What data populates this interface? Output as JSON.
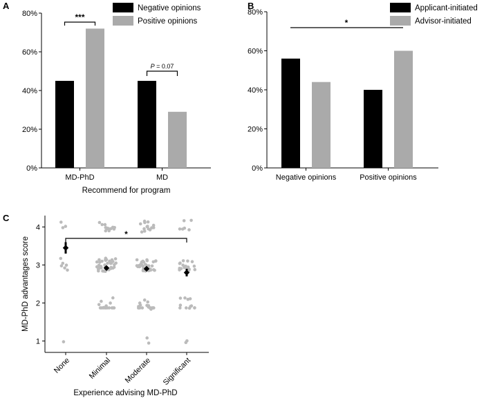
{
  "chart_data": [
    {
      "panel": "A",
      "type": "bar",
      "categories": [
        "MD-PhD",
        "MD"
      ],
      "series": [
        {
          "name": "Negative opinions",
          "values": [
            45,
            45
          ],
          "color": "#000000"
        },
        {
          "name": "Positive opinions",
          "values": [
            72,
            29
          ],
          "color": "#aaaaaa"
        }
      ],
      "xlabel": "Recommend for program",
      "ylabel": "",
      "ylim": [
        0,
        80
      ],
      "yticks": [
        "0%",
        "20%",
        "40%",
        "60%",
        "80%"
      ],
      "legend_position": "top-right",
      "annotations": [
        {
          "category": "MD-PhD",
          "text": "***"
        },
        {
          "category": "MD",
          "text": "P = 0.07",
          "p_letter": "P",
          "p_rest": " = 0.07"
        }
      ]
    },
    {
      "panel": "B",
      "type": "bar",
      "categories": [
        "Negative opinions",
        "Positive opinions"
      ],
      "series": [
        {
          "name": "Applicant-initiated",
          "values": [
            56,
            40
          ],
          "color": "#000000"
        },
        {
          "name": "Advisor-initiated",
          "values": [
            44,
            60
          ],
          "color": "#aaaaaa"
        }
      ],
      "xlabel": "",
      "ylabel": "",
      "ylim": [
        0,
        80
      ],
      "yticks": [
        "0%",
        "20%",
        "40%",
        "60%",
        "80%"
      ],
      "legend_position": "top-right",
      "annotations": [
        {
          "text": "*"
        }
      ]
    },
    {
      "panel": "C",
      "type": "scatter",
      "categories": [
        "None",
        "Minimal",
        "Moderate",
        "Significant"
      ],
      "xlabel": "Experience advising MD-PhD",
      "ylabel": "MD-PhD advantages score",
      "ylim": [
        0.7,
        4.3
      ],
      "yticks": [
        "1",
        "2",
        "3",
        "4"
      ],
      "means": [
        {
          "category": "None",
          "mean": 3.45,
          "lo": 3.3,
          "hi": 3.6
        },
        {
          "category": "Minimal",
          "mean": 2.92,
          "lo": 2.87,
          "hi": 2.97
        },
        {
          "category": "Moderate",
          "mean": 2.9,
          "lo": 2.85,
          "hi": 2.95
        },
        {
          "category": "Significant",
          "mean": 2.8,
          "lo": 2.7,
          "hi": 2.9
        }
      ],
      "annotations": [
        {
          "text": "*"
        }
      ],
      "point_color": "#bbbbbb"
    }
  ],
  "panel_labels": {
    "a": "A",
    "b": "B",
    "c": "C"
  }
}
